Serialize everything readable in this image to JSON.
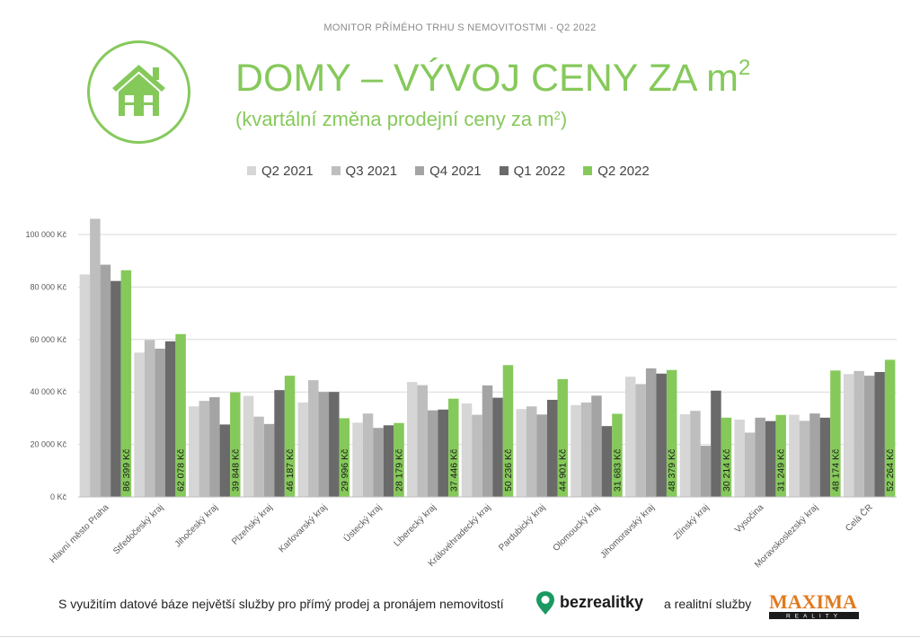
{
  "header": {
    "kicker": "MONITOR PŘÍMÉHO TRHU S NEMOVITOSTMI - Q2 2022",
    "title_main": "DOMY – VÝVOJ CENY ZA m",
    "title_sup": "2",
    "subtitle_main": "(kvartální změna prodejní ceny za m",
    "subtitle_sup": "2",
    "subtitle_end": ")",
    "logo_icon": "house-icon"
  },
  "footer": {
    "text": "S využitím datové báze největší služby pro přímý prodej a pronájem nemovitostí",
    "brand1": "bezrealitky",
    "mid_text": "a realitní služby",
    "brand2": "MAXIMA",
    "brand2_sub": "REALITY"
  },
  "colors": {
    "accent": "#86c95b",
    "series": [
      "#d6d6d6",
      "#bebebe",
      "#a4a4a4",
      "#6a6a6a",
      "#86c95b"
    ]
  },
  "chart_data": {
    "type": "bar",
    "categories": [
      "Hlavní město Praha",
      "Středočeský kraj",
      "Jihočeský kraj",
      "Plzeňský kraj",
      "Karlovarský kraj",
      "Ústecký kraj",
      "Liberecký kraj",
      "Královéhradecký kraj",
      "Pardubický kraj",
      "Olomoucký kraj",
      "Jihomoravský kraj",
      "Zlínský kraj",
      "Vysočina",
      "Moravskoslezský kraj",
      "Celá ČR"
    ],
    "series": [
      {
        "name": "Q2 2021",
        "values": [
          84800,
          55000,
          34500,
          38500,
          36000,
          28300,
          43800,
          35600,
          33500,
          35000,
          45800,
          31500,
          29500,
          31300,
          46800
        ]
      },
      {
        "name": "Q3 2021",
        "values": [
          106000,
          59800,
          36600,
          30600,
          44500,
          31800,
          42600,
          31300,
          34500,
          36000,
          43000,
          32800,
          24500,
          29000,
          48000
        ]
      },
      {
        "name": "Q4 2021",
        "values": [
          88500,
          56500,
          38000,
          27800,
          40000,
          26300,
          33000,
          42500,
          31400,
          38600,
          49000,
          19500,
          30200,
          31800,
          46200
        ]
      },
      {
        "name": "Q1 2022",
        "values": [
          82300,
          59300,
          27600,
          40700,
          40000,
          27300,
          33300,
          37800,
          37000,
          27000,
          47000,
          40500,
          28900,
          30200,
          47600
        ]
      },
      {
        "name": "Q2 2022",
        "values": [
          86399,
          62078,
          39848,
          46187,
          29996,
          28179,
          37446,
          50236,
          44901,
          31683,
          48379,
          30214,
          31249,
          48174,
          52264
        ]
      }
    ],
    "data_labels": [
      "86 399 Kč",
      "62 078 Kč",
      "39 848 Kč",
      "46 187 Kč",
      "29 996 Kč",
      "28 179 Kč",
      "37 446 Kč",
      "50 236 Kč",
      "44 901 Kč",
      "31 683 Kč",
      "48 379 Kč",
      "30 214 Kč",
      "31 249 Kč",
      "48 174 Kč",
      "52 264 Kč"
    ],
    "y_ticks": [
      0,
      20000,
      40000,
      60000,
      80000,
      100000
    ],
    "y_tick_labels": [
      "0 Kč",
      "20 000 Kč",
      "40 000 Kč",
      "60 000 Kč",
      "80 000 Kč",
      "100 000 Kč"
    ],
    "ylim": [
      0,
      110000
    ],
    "grid": true,
    "legend_position": "top"
  }
}
